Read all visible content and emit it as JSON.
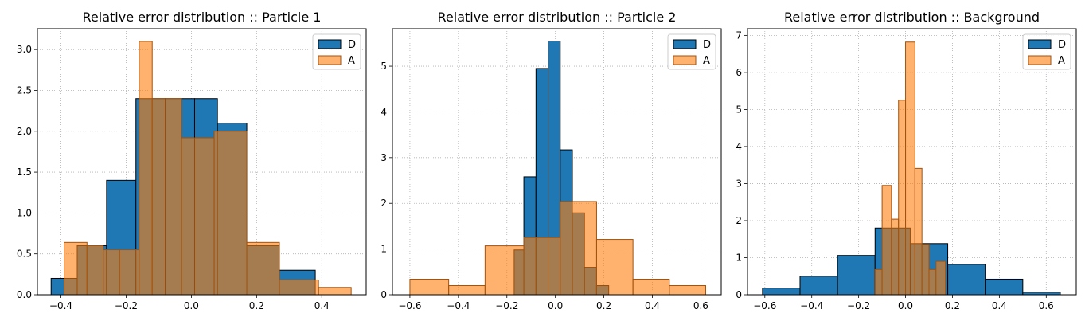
{
  "chart_data": [
    {
      "type": "bar",
      "title": "Relative error distribution :: Particle 1",
      "xlim": [
        -0.472,
        0.536
      ],
      "ylim": [
        0,
        3.255
      ],
      "xticks": [
        -0.4,
        -0.2,
        0.0,
        0.2,
        0.4
      ],
      "xtick_labels": [
        "−0.4",
        "−0.2",
        "0.0",
        "0.2",
        "0.4"
      ],
      "yticks": [
        0.0,
        0.5,
        1.0,
        1.5,
        2.0,
        2.5,
        3.0
      ],
      "ytick_labels": [
        "0.0",
        "0.5",
        "1.0",
        "1.5",
        "2.0",
        "2.5",
        "3.0"
      ],
      "grid": true,
      "legend": "top-right",
      "series": [
        {
          "name": "D",
          "color": "#1f77b4",
          "alpha": 1.0,
          "edge": "#000000",
          "bins": [
            {
              "x0": -0.43,
              "x1": -0.35,
              "y": 0.2
            },
            {
              "x0": -0.35,
              "x1": -0.26,
              "y": 0.6
            },
            {
              "x0": -0.26,
              "x1": -0.17,
              "y": 1.4
            },
            {
              "x0": -0.17,
              "x1": -0.08,
              "y": 2.4
            },
            {
              "x0": -0.08,
              "x1": 0.01,
              "y": 2.4
            },
            {
              "x0": 0.01,
              "x1": 0.08,
              "y": 2.4
            },
            {
              "x0": 0.08,
              "x1": 0.17,
              "y": 2.1
            },
            {
              "x0": 0.17,
              "x1": 0.27,
              "y": 0.6
            },
            {
              "x0": 0.27,
              "x1": 0.38,
              "y": 0.3
            }
          ]
        },
        {
          "name": "A",
          "color": "#ff7f0e",
          "alpha": 0.6,
          "edge": "#a0520e",
          "bins": [
            {
              "x0": -0.39,
              "x1": -0.32,
              "y": 0.64
            },
            {
              "x0": -0.32,
              "x1": -0.27,
              "y": 0.6
            },
            {
              "x0": -0.27,
              "x1": -0.22,
              "y": 0.55
            },
            {
              "x0": -0.22,
              "x1": -0.16,
              "y": 0.55
            },
            {
              "x0": -0.16,
              "x1": -0.12,
              "y": 3.1
            },
            {
              "x0": -0.12,
              "x1": -0.03,
              "y": 2.4
            },
            {
              "x0": -0.03,
              "x1": 0.07,
              "y": 1.92
            },
            {
              "x0": 0.07,
              "x1": 0.17,
              "y": 2.0
            },
            {
              "x0": 0.17,
              "x1": 0.27,
              "y": 0.64
            },
            {
              "x0": 0.27,
              "x1": 0.39,
              "y": 0.18
            },
            {
              "x0": 0.39,
              "x1": 0.49,
              "y": 0.09
            }
          ]
        }
      ]
    },
    {
      "type": "bar",
      "title": "Relative error distribution :: Particle 2",
      "xlim": [
        -0.672,
        0.684
      ],
      "ylim": [
        0,
        5.82
      ],
      "xticks": [
        -0.6,
        -0.4,
        -0.2,
        0.0,
        0.2,
        0.4,
        0.6
      ],
      "xtick_labels": [
        "−0.6",
        "−0.4",
        "−0.2",
        "0.0",
        "0.2",
        "0.4",
        "0.6"
      ],
      "yticks": [
        0,
        1,
        2,
        3,
        4,
        5
      ],
      "ytick_labels": [
        "0",
        "1",
        "2",
        "3",
        "4",
        "5"
      ],
      "grid": true,
      "legend": "top-right",
      "series": [
        {
          "name": "D",
          "color": "#1f77b4",
          "alpha": 1.0,
          "edge": "#000000",
          "bins": [
            {
              "x0": -0.17,
              "x1": -0.13,
              "y": 0.98
            },
            {
              "x0": -0.13,
              "x1": -0.08,
              "y": 2.58
            },
            {
              "x0": -0.08,
              "x1": -0.03,
              "y": 4.95
            },
            {
              "x0": -0.03,
              "x1": 0.02,
              "y": 5.55
            },
            {
              "x0": 0.02,
              "x1": 0.07,
              "y": 3.17
            },
            {
              "x0": 0.07,
              "x1": 0.12,
              "y": 1.79
            },
            {
              "x0": 0.12,
              "x1": 0.17,
              "y": 0.6
            },
            {
              "x0": 0.17,
              "x1": 0.22,
              "y": 0.2
            }
          ]
        },
        {
          "name": "A",
          "color": "#ff7f0e",
          "alpha": 0.6,
          "edge": "#a0520e",
          "bins": [
            {
              "x0": -0.6,
              "x1": -0.44,
              "y": 0.34
            },
            {
              "x0": -0.44,
              "x1": -0.29,
              "y": 0.2
            },
            {
              "x0": -0.29,
              "x1": -0.13,
              "y": 1.07
            },
            {
              "x0": -0.13,
              "x1": 0.02,
              "y": 1.25
            },
            {
              "x0": 0.02,
              "x1": 0.17,
              "y": 2.04
            },
            {
              "x0": 0.17,
              "x1": 0.32,
              "y": 1.21
            },
            {
              "x0": 0.32,
              "x1": 0.47,
              "y": 0.34
            },
            {
              "x0": 0.47,
              "x1": 0.62,
              "y": 0.2
            }
          ]
        }
      ]
    },
    {
      "type": "bar",
      "title": "Relative error distribution :: Background",
      "xlim": [
        -0.674,
        0.728
      ],
      "ylim": [
        0,
        7.18
      ],
      "xticks": [
        -0.6,
        -0.4,
        -0.2,
        0.0,
        0.2,
        0.4,
        0.6
      ],
      "xtick_labels": [
        "−0.6",
        "−0.4",
        "−0.2",
        "0.0",
        "0.2",
        "0.4",
        "0.6"
      ],
      "yticks": [
        0,
        1,
        2,
        3,
        4,
        5,
        6,
        7
      ],
      "ytick_labels": [
        "0",
        "1",
        "2",
        "3",
        "4",
        "5",
        "6",
        "7"
      ],
      "grid": true,
      "legend": "top-right",
      "series": [
        {
          "name": "D",
          "color": "#1f77b4",
          "alpha": 1.0,
          "edge": "#000000",
          "bins": [
            {
              "x0": -0.61,
              "x1": -0.45,
              "y": 0.18
            },
            {
              "x0": -0.45,
              "x1": -0.29,
              "y": 0.5
            },
            {
              "x0": -0.29,
              "x1": -0.13,
              "y": 1.06
            },
            {
              "x0": -0.13,
              "x1": 0.02,
              "y": 1.8
            },
            {
              "x0": 0.02,
              "x1": 0.18,
              "y": 1.38
            },
            {
              "x0": 0.18,
              "x1": 0.34,
              "y": 0.82
            },
            {
              "x0": 0.34,
              "x1": 0.5,
              "y": 0.42
            },
            {
              "x0": 0.5,
              "x1": 0.66,
              "y": 0.07
            }
          ]
        },
        {
          "name": "A",
          "color": "#ff7f0e",
          "alpha": 0.6,
          "edge": "#a0520e",
          "bins": [
            {
              "x0": -0.13,
              "x1": -0.1,
              "y": 0.68
            },
            {
              "x0": -0.1,
              "x1": -0.06,
              "y": 2.95
            },
            {
              "x0": -0.06,
              "x1": -0.03,
              "y": 2.04
            },
            {
              "x0": -0.03,
              "x1": 0.0,
              "y": 5.25
            },
            {
              "x0": 0.0,
              "x1": 0.04,
              "y": 6.82
            },
            {
              "x0": 0.04,
              "x1": 0.07,
              "y": 3.41
            },
            {
              "x0": 0.07,
              "x1": 0.1,
              "y": 1.36
            },
            {
              "x0": 0.1,
              "x1": 0.13,
              "y": 0.68
            },
            {
              "x0": 0.13,
              "x1": 0.17,
              "y": 0.9
            }
          ]
        }
      ]
    }
  ]
}
